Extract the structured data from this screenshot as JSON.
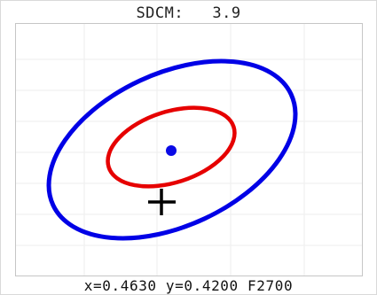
{
  "header": {
    "label": "SDCM:",
    "value": "3.9"
  },
  "status": {
    "x_label": "x=",
    "x_value": "0.4630",
    "y_label": "y=",
    "y_value": "0.4200",
    "reference": "F2700"
  },
  "colors": {
    "outer_ellipse": "#0000e6",
    "inner_ellipse": "#e60000",
    "center_point": "#0a0ae6",
    "crosshair": "#000000",
    "grid": "#eeeeee"
  }
}
